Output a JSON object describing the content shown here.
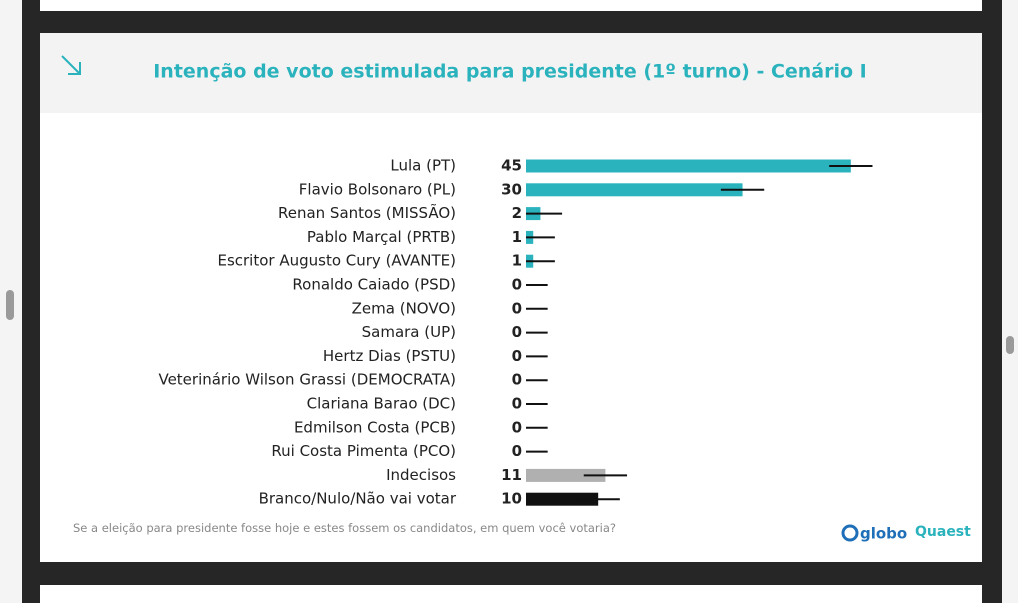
{
  "chart_data": {
    "type": "bar",
    "orientation": "horizontal",
    "title": "Intenção de voto estimulada para presidente (1º turno) - Cenário I",
    "categories": [
      "Lula (PT)",
      "Flavio Bolsonaro (PL)",
      "Renan Santos (MISSÃO)",
      "Pablo Marçal (PRTB)",
      "Escritor Augusto Cury (AVANTE)",
      "Ronaldo Caiado (PSD)",
      "Zema (NOVO)",
      "Samara (UP)",
      "Hertz Dias (PSTU)",
      "Veterinário Wilson Grassi (DEMOCRATA)",
      "Clariana Barao (DC)",
      "Edmilson Costa (PCB)",
      "Rui Costa Pimenta (PCO)",
      "Indecisos",
      "Branco/Nulo/Não vai votar"
    ],
    "values": [
      45,
      30,
      2,
      1,
      1,
      0,
      0,
      0,
      0,
      0,
      0,
      0,
      0,
      11,
      10
    ],
    "errors": [
      3,
      3,
      3,
      3,
      3,
      3,
      3,
      3,
      3,
      3,
      3,
      3,
      3,
      3,
      3
    ],
    "colors": [
      "#2bb3bd",
      "#2bb3bd",
      "#2bb3bd",
      "#2bb3bd",
      "#2bb3bd",
      "#2bb3bd",
      "#2bb3bd",
      "#2bb3bd",
      "#2bb3bd",
      "#2bb3bd",
      "#2bb3bd",
      "#2bb3bd",
      "#2bb3bd",
      "#b0b0b0",
      "#111111"
    ],
    "xlim": [
      0,
      55
    ],
    "note": "Se a eleição para presidente fosse hoje e estes fossem os candidatos, em quem você votaria?",
    "logos": [
      "globo",
      "Quaest"
    ]
  }
}
